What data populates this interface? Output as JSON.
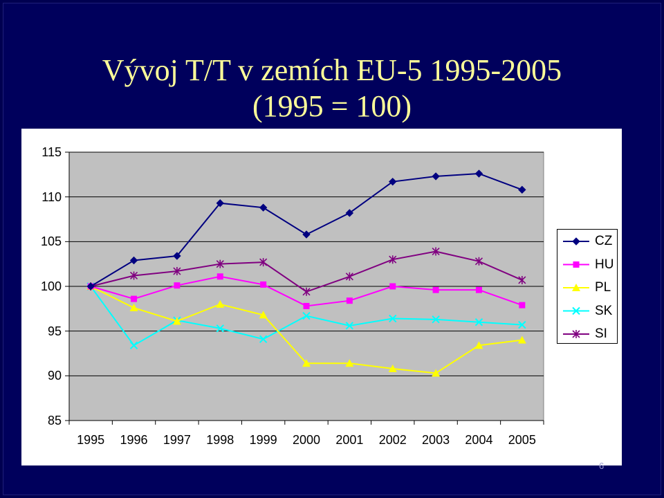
{
  "slide": {
    "title_line1": "Vývoj T/T v zemích EU-5 1995-2005",
    "title_line2": "(1995 = 100)",
    "page_number": "6"
  },
  "chart_data": {
    "type": "line",
    "title": "",
    "xlabel": "",
    "ylabel": "",
    "categories": [
      "1995",
      "1996",
      "1997",
      "1998",
      "1999",
      "2000",
      "2001",
      "2002",
      "2003",
      "2004",
      "2005"
    ],
    "ylim": [
      85,
      115
    ],
    "yticks": [
      85,
      90,
      95,
      100,
      105,
      110,
      115
    ],
    "grid": "horizontal",
    "plot_background": "#c0c0c0",
    "legend_position": "right",
    "series": [
      {
        "name": "CZ",
        "color": "#000080",
        "marker": "diamond",
        "values": [
          100,
          102.9,
          103.4,
          109.3,
          108.8,
          105.8,
          108.2,
          111.7,
          112.3,
          112.6,
          110.8
        ]
      },
      {
        "name": "HU",
        "color": "#ff00ff",
        "marker": "square",
        "values": [
          100,
          98.6,
          100.1,
          101.1,
          100.2,
          97.8,
          98.4,
          100.0,
          99.6,
          99.6,
          97.9
        ]
      },
      {
        "name": "PL",
        "color": "#ffff00",
        "marker": "triangle",
        "values": [
          100,
          97.6,
          96.1,
          98.0,
          96.8,
          91.4,
          91.4,
          90.8,
          90.3,
          93.4,
          94.0
        ]
      },
      {
        "name": "SK",
        "color": "#00ffff",
        "marker": "x",
        "values": [
          100,
          93.4,
          96.2,
          95.3,
          94.1,
          96.7,
          95.6,
          96.4,
          96.3,
          96.0,
          95.7
        ]
      },
      {
        "name": "SI",
        "color": "#800080",
        "marker": "star",
        "values": [
          100,
          101.2,
          101.7,
          102.5,
          102.7,
          99.4,
          101.1,
          103.0,
          103.9,
          102.8,
          100.7
        ]
      }
    ]
  }
}
